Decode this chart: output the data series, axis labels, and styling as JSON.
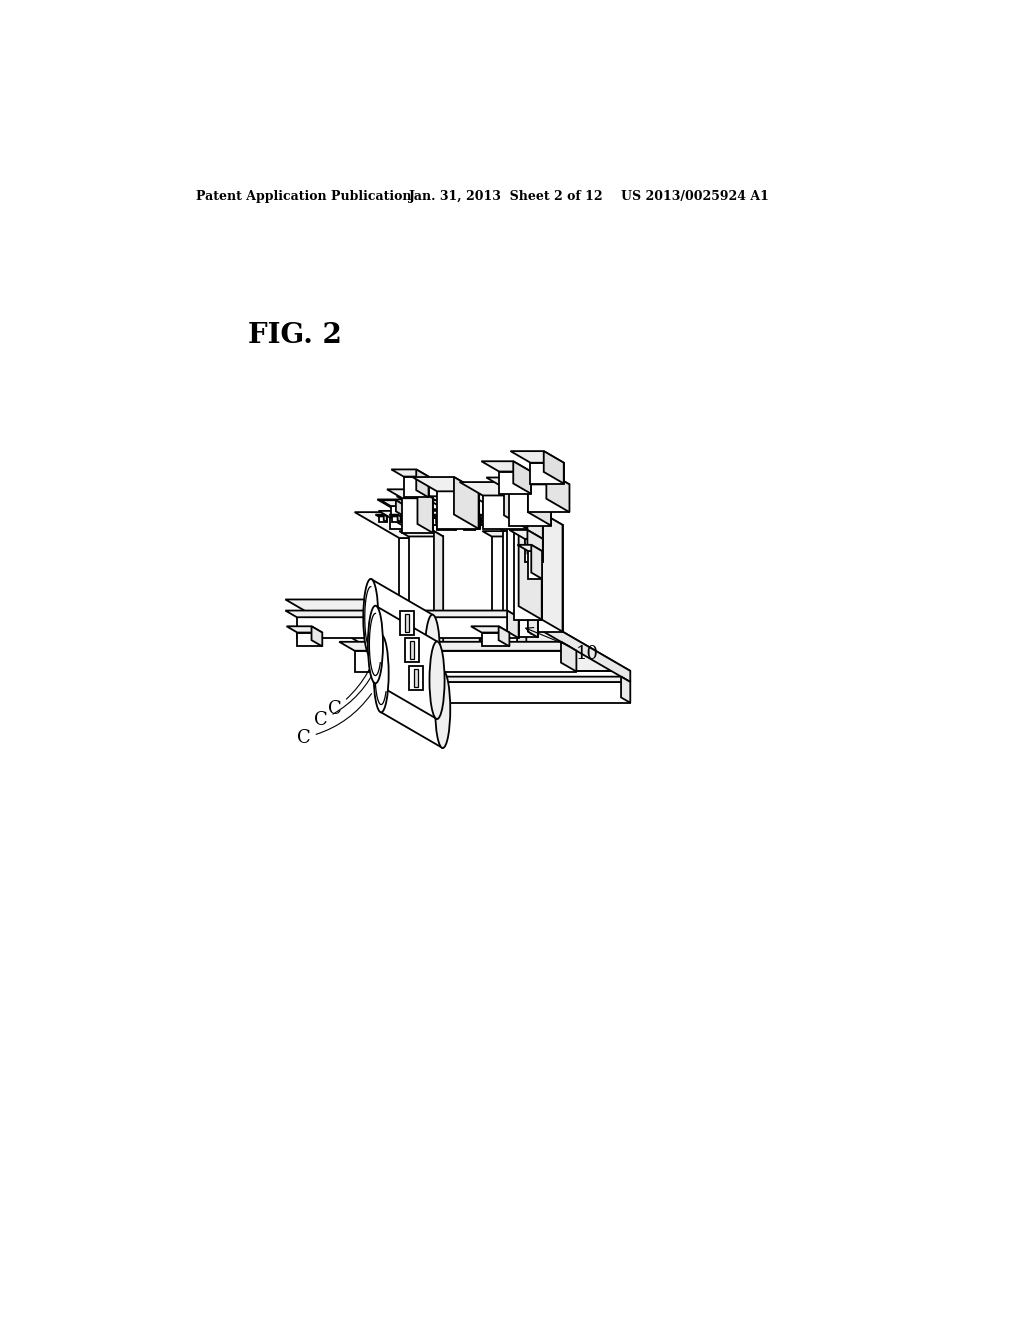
{
  "background_color": "#ffffff",
  "header_left": "Patent Application Publication",
  "header_middle": "Jan. 31, 2013  Sheet 2 of 12",
  "header_right": "US 2013/0025924 A1",
  "fig_label": "FIG. 2",
  "label_C1": "C",
  "label_C2": "C",
  "label_C3": "C",
  "label_10": "10",
  "line_color": "#000000",
  "line_width": 1.3
}
